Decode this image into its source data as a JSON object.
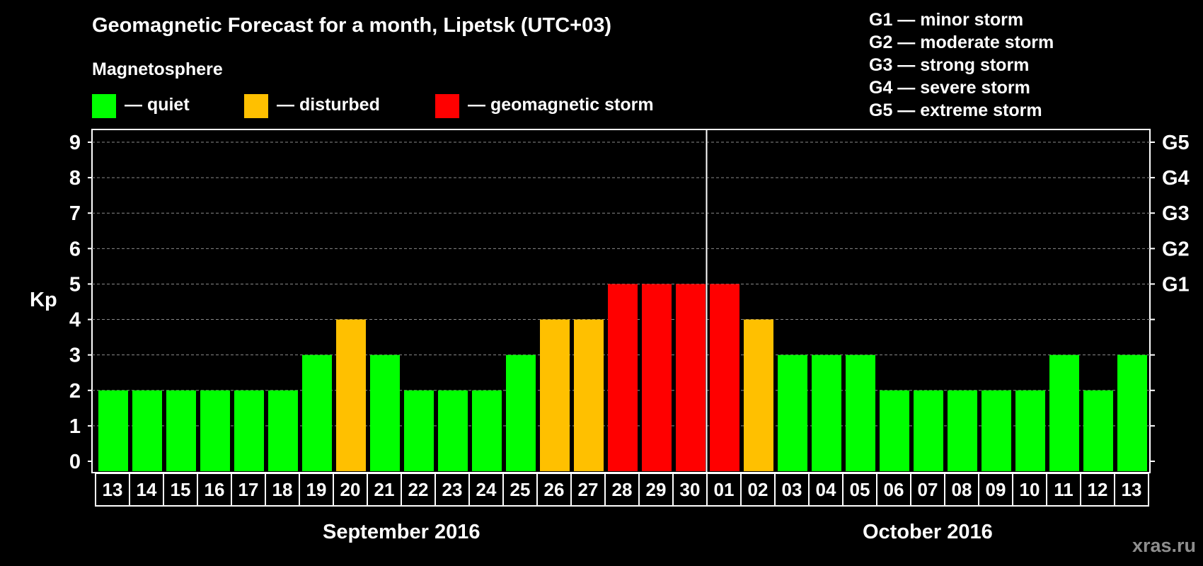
{
  "header": {
    "title": "Geomagnetic Forecast for a month, Lipetsk (UTC+03)",
    "magnetosphere_label": "Magnetosphere"
  },
  "legend": [
    {
      "label": "— quiet",
      "color": "#00ff00"
    },
    {
      "label": "— disturbed",
      "color": "#ffc000"
    },
    {
      "label": "— geomagnetic storm",
      "color": "#ff0000"
    }
  ],
  "storm_scale": [
    "G1 — minor storm",
    "G2 — moderate storm",
    "G3 — strong storm",
    "G4 — severe storm",
    "G5 — extreme storm"
  ],
  "months": [
    "September 2016",
    "October 2016"
  ],
  "watermark": "xras.ru",
  "colors": {
    "quiet": "#00ff00",
    "disturbed": "#ffc000",
    "storm": "#ff0000",
    "background": "#000000"
  },
  "chart_data": {
    "type": "bar",
    "title": "Geomagnetic Forecast for a month, Lipetsk (UTC+03)",
    "ylabel": "Kp",
    "xlabel": "",
    "ylim": [
      0,
      9
    ],
    "yticks": [
      "0",
      "1",
      "2",
      "3",
      "4",
      "5",
      "6",
      "7",
      "8",
      "9"
    ],
    "right_tick_labels": [
      {
        "value": 5,
        "label": "G1"
      },
      {
        "value": 6,
        "label": "G2"
      },
      {
        "value": 7,
        "label": "G3"
      },
      {
        "value": 8,
        "label": "G4"
      },
      {
        "value": 9,
        "label": "G5"
      }
    ],
    "grid": true,
    "categories": [
      "13",
      "14",
      "15",
      "16",
      "17",
      "18",
      "19",
      "20",
      "21",
      "22",
      "23",
      "24",
      "25",
      "26",
      "27",
      "28",
      "29",
      "30",
      "01",
      "02",
      "03",
      "04",
      "05",
      "06",
      "07",
      "08",
      "09",
      "10",
      "11",
      "12",
      "13"
    ],
    "values": [
      2,
      2,
      2,
      2,
      2,
      2,
      3,
      4,
      3,
      2,
      2,
      2,
      3,
      4,
      4,
      5,
      5,
      5,
      5,
      4,
      3,
      3,
      3,
      2,
      2,
      2,
      2,
      2,
      3,
      2,
      3
    ],
    "month_boundary_after_index": 17
  }
}
